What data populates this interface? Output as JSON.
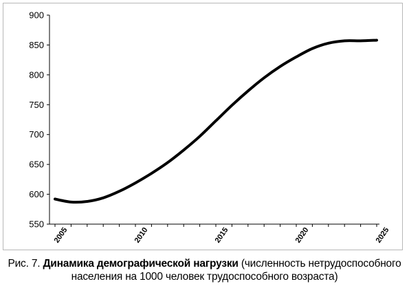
{
  "chart_data": {
    "type": "line",
    "x": [
      2005,
      2006,
      2007,
      2008,
      2009,
      2010,
      2011,
      2012,
      2013,
      2014,
      2015,
      2016,
      2017,
      2018,
      2019,
      2020,
      2021,
      2022,
      2023,
      2024,
      2025
    ],
    "series": [
      {
        "values": [
          592,
          587,
          588,
          594,
          605,
          619,
          635,
          653,
          674,
          697,
          723,
          749,
          773,
          795,
          814,
          830,
          844,
          853,
          857,
          857,
          858
        ]
      }
    ],
    "x_ticks": [
      "2005",
      "2010",
      "2015",
      "2020",
      "2025"
    ],
    "y_ticks": [
      "550",
      "600",
      "650",
      "700",
      "750",
      "800",
      "850",
      "900"
    ],
    "ylim": [
      550,
      900
    ],
    "xlim": [
      2005,
      2025
    ],
    "grid": false,
    "line_color": "#000000"
  },
  "caption": {
    "prefix": "Рис. 7. ",
    "title": "Динамика демографической нагрузки",
    "rest": " (численность нетрудоспособного населения на 1000 человек трудоспособного возраста)"
  }
}
